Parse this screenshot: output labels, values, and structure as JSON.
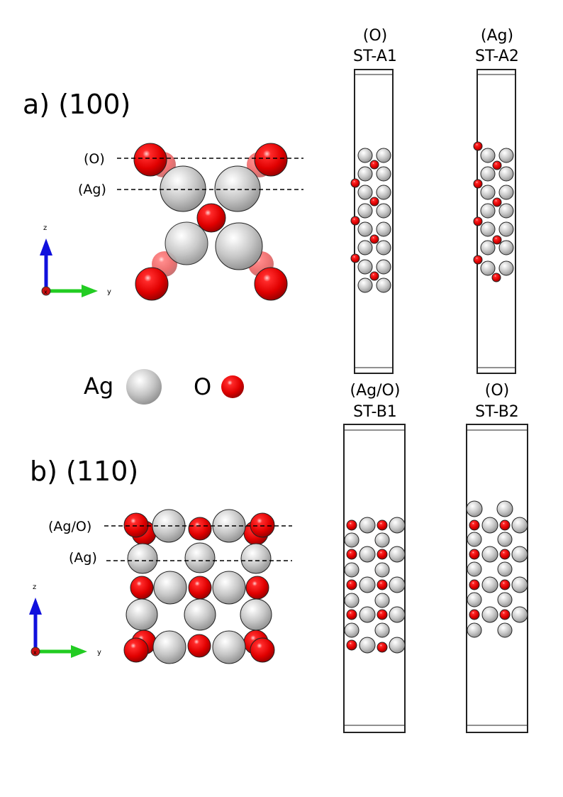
{
  "panel_a": {
    "label": "a) (100)",
    "layer_top": "(O)",
    "layer_second": "(Ag)",
    "axis_z": "z",
    "axis_y": "y",
    "axis_x": "x"
  },
  "panel_b": {
    "label": "b) (110)",
    "layer_top": "(Ag/O)",
    "layer_second": "(Ag)",
    "axis_z": "z",
    "axis_y": "y",
    "axis_x": "x"
  },
  "legend": {
    "ag_label": "Ag",
    "o_label": "O"
  },
  "slabs": [
    {
      "termination": "(O)",
      "name": "ST-A1"
    },
    {
      "termination": "(Ag)",
      "name": "ST-A2"
    },
    {
      "termination": "(Ag/O)",
      "name": "ST-B1"
    },
    {
      "termination": "(O)",
      "name": "ST-B2"
    }
  ],
  "colors": {
    "silver": "#c8c8c8",
    "oxygen": "#ee0000",
    "z_axis": "#1010dd",
    "y_axis": "#22cc22",
    "x_axis": "#cc1111"
  }
}
